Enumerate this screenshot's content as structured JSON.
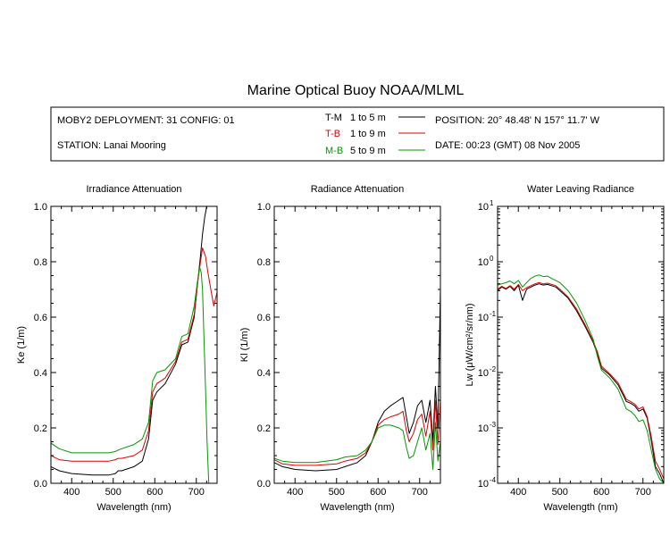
{
  "title": "Marine Optical Buoy NOAA/MLML",
  "header": {
    "deployment": "MOBY2 DEPLOYMENT: 31 CONFIG: 01",
    "station": "STATION: Lanai Mooring",
    "position": "POSITION: 20° 48.48' N   157° 11.7' W",
    "date": "DATE: 00:23 (GMT) 08 Nov 2005",
    "legend": [
      {
        "code": "T-M",
        "depth": "1 to 5  m",
        "color": "#000000"
      },
      {
        "code": "T-B",
        "depth": "1 to 9  m",
        "color": "#e00000"
      },
      {
        "code": "M-B",
        "depth": "5 to 9  m",
        "color": "#009900"
      }
    ]
  },
  "chart_data": [
    {
      "type": "line",
      "title": "Irradiance Attenuation",
      "xlabel": "Wavelength (nm)",
      "ylabel": "Ke  (1/m)",
      "xlim": [
        350,
        750
      ],
      "ylim": [
        0,
        1.0
      ],
      "xticks": [
        400,
        500,
        600,
        700
      ],
      "yticks": [
        "0.0",
        "0.2",
        "0.4",
        "0.6",
        "0.8",
        "1.0"
      ],
      "yscale": "linear",
      "series": [
        {
          "name": "T-M",
          "color": "#000000",
          "x": [
            350,
            370,
            400,
            450,
            490,
            505,
            512,
            520,
            550,
            570,
            585,
            595,
            605,
            625,
            650,
            665,
            680,
            695,
            703,
            710,
            715,
            720,
            725
          ],
          "y": [
            0.06,
            0.045,
            0.035,
            0.03,
            0.03,
            0.035,
            0.045,
            0.045,
            0.06,
            0.08,
            0.16,
            0.3,
            0.33,
            0.36,
            0.43,
            0.5,
            0.51,
            0.6,
            0.72,
            0.82,
            0.9,
            0.96,
            1.0
          ]
        },
        {
          "name": "T-B",
          "color": "#e00000",
          "x": [
            350,
            370,
            400,
            450,
            490,
            505,
            512,
            520,
            550,
            570,
            585,
            595,
            605,
            625,
            650,
            665,
            680,
            695,
            703,
            710,
            715,
            722,
            728,
            735,
            742,
            750
          ],
          "y": [
            0.1,
            0.085,
            0.08,
            0.08,
            0.08,
            0.085,
            0.09,
            0.09,
            0.1,
            0.12,
            0.19,
            0.33,
            0.36,
            0.38,
            0.44,
            0.51,
            0.52,
            0.61,
            0.72,
            0.8,
            0.85,
            0.82,
            0.76,
            0.7,
            0.64,
            0.69
          ]
        },
        {
          "name": "M-B",
          "color": "#009900",
          "x": [
            350,
            370,
            400,
            450,
            490,
            505,
            512,
            520,
            550,
            570,
            585,
            595,
            605,
            625,
            650,
            665,
            680,
            695,
            703,
            708,
            712,
            715,
            718,
            722,
            726,
            730
          ],
          "y": [
            0.145,
            0.125,
            0.11,
            0.11,
            0.11,
            0.115,
            0.12,
            0.125,
            0.14,
            0.16,
            0.22,
            0.37,
            0.4,
            0.41,
            0.45,
            0.53,
            0.54,
            0.64,
            0.73,
            0.78,
            0.76,
            0.7,
            0.55,
            0.35,
            0.15,
            0.0
          ]
        }
      ]
    },
    {
      "type": "line",
      "title": "Radiance Attenuation",
      "xlabel": "Wavelength (nm)",
      "ylabel": "Kl  (1/m)",
      "xlim": [
        350,
        750
      ],
      "ylim": [
        0,
        1.0
      ],
      "xticks": [
        400,
        500,
        600,
        700
      ],
      "yticks": [
        "0.0",
        "0.2",
        "0.4",
        "0.6",
        "0.8",
        "1.0"
      ],
      "yscale": "linear",
      "series": [
        {
          "name": "T-M",
          "color": "#000000",
          "x": [
            350,
            370,
            400,
            450,
            500,
            520,
            550,
            570,
            585,
            600,
            615,
            630,
            650,
            660,
            668,
            675,
            685,
            695,
            705,
            715,
            725,
            732,
            738,
            744,
            750
          ],
          "y": [
            0.075,
            0.06,
            0.05,
            0.045,
            0.05,
            0.06,
            0.075,
            0.1,
            0.15,
            0.22,
            0.26,
            0.28,
            0.3,
            0.31,
            0.24,
            0.18,
            0.22,
            0.28,
            0.3,
            0.22,
            0.3,
            0.15,
            0.35,
            0.2,
            0.7
          ]
        },
        {
          "name": "T-B",
          "color": "#e00000",
          "x": [
            350,
            370,
            400,
            450,
            500,
            520,
            550,
            570,
            585,
            600,
            615,
            630,
            650,
            660,
            668,
            675,
            685,
            695,
            705,
            715,
            725,
            732,
            738,
            744,
            750
          ],
          "y": [
            0.085,
            0.07,
            0.065,
            0.065,
            0.07,
            0.08,
            0.09,
            0.11,
            0.15,
            0.21,
            0.23,
            0.24,
            0.25,
            0.26,
            0.19,
            0.15,
            0.18,
            0.23,
            0.25,
            0.17,
            0.26,
            0.12,
            0.3,
            0.14,
            0.3
          ]
        },
        {
          "name": "M-B",
          "color": "#009900",
          "x": [
            350,
            370,
            400,
            450,
            500,
            520,
            550,
            570,
            585,
            600,
            615,
            630,
            650,
            660,
            668,
            675,
            685,
            695,
            705,
            715,
            725,
            732,
            738,
            744,
            750
          ],
          "y": [
            0.09,
            0.08,
            0.075,
            0.075,
            0.085,
            0.095,
            0.1,
            0.12,
            0.15,
            0.2,
            0.21,
            0.21,
            0.2,
            0.19,
            0.13,
            0.09,
            0.1,
            0.15,
            0.2,
            0.12,
            0.18,
            0.05,
            0.22,
            0.08,
            0.15
          ]
        }
      ]
    },
    {
      "type": "line",
      "title": "Water Leaving Radiance",
      "xlabel": "Wavelength (nm)",
      "ylabel": "Lw  (μW/cm²/sr/nm)",
      "xlim": [
        350,
        750
      ],
      "ylim": [
        0.0001,
        10
      ],
      "xticks": [
        400,
        500,
        600,
        700
      ],
      "yticks": [
        "10",
        "10",
        "10",
        "10",
        "10",
        "10"
      ],
      "ytick_exponents": [
        "1",
        "0",
        "-1",
        "-2",
        "-3",
        "-4"
      ],
      "yscale": "log",
      "series": [
        {
          "name": "T-M",
          "color": "#000000",
          "x": [
            350,
            360,
            370,
            380,
            390,
            400,
            410,
            420,
            430,
            440,
            450,
            460,
            470,
            480,
            490,
            500,
            520,
            540,
            560,
            580,
            590,
            600,
            620,
            640,
            660,
            670,
            680,
            690,
            700,
            710,
            720,
            730,
            740,
            750
          ],
          "y": [
            0.3,
            0.35,
            0.32,
            0.36,
            0.3,
            0.38,
            0.2,
            0.32,
            0.35,
            0.38,
            0.4,
            0.38,
            0.39,
            0.37,
            0.35,
            0.3,
            0.22,
            0.13,
            0.07,
            0.035,
            0.022,
            0.012,
            0.009,
            0.006,
            0.003,
            0.0028,
            0.0025,
            0.002,
            0.0022,
            0.0015,
            0.0006,
            0.0002,
            0.00015,
            0.0001
          ]
        },
        {
          "name": "T-B",
          "color": "#e00000",
          "x": [
            350,
            360,
            370,
            380,
            390,
            400,
            410,
            420,
            430,
            440,
            450,
            460,
            470,
            480,
            490,
            500,
            520,
            540,
            560,
            580,
            590,
            600,
            620,
            640,
            660,
            670,
            680,
            690,
            700,
            710,
            720,
            730,
            740,
            750
          ],
          "y": [
            0.32,
            0.36,
            0.33,
            0.37,
            0.32,
            0.39,
            0.3,
            0.34,
            0.37,
            0.4,
            0.42,
            0.4,
            0.41,
            0.39,
            0.37,
            0.32,
            0.23,
            0.14,
            0.075,
            0.037,
            0.024,
            0.013,
            0.0095,
            0.0065,
            0.0033,
            0.003,
            0.0027,
            0.0022,
            0.0024,
            0.0016,
            0.0007,
            0.00025,
            0.00018,
            0.00012
          ]
        },
        {
          "name": "M-B",
          "color": "#009900",
          "x": [
            350,
            360,
            370,
            380,
            390,
            400,
            410,
            420,
            430,
            440,
            450,
            460,
            470,
            480,
            490,
            500,
            520,
            540,
            560,
            580,
            590,
            600,
            620,
            640,
            660,
            670,
            680,
            690,
            700,
            710,
            720,
            730,
            740,
            750
          ],
          "y": [
            0.38,
            0.4,
            0.42,
            0.45,
            0.4,
            0.46,
            0.35,
            0.42,
            0.5,
            0.55,
            0.58,
            0.54,
            0.55,
            0.5,
            0.46,
            0.42,
            0.3,
            0.18,
            0.09,
            0.04,
            0.02,
            0.011,
            0.008,
            0.005,
            0.0022,
            0.002,
            0.0017,
            0.0013,
            0.0014,
            0.0009,
            0.0004,
            0.00018,
            0.00012,
            0.0001
          ]
        }
      ]
    }
  ]
}
